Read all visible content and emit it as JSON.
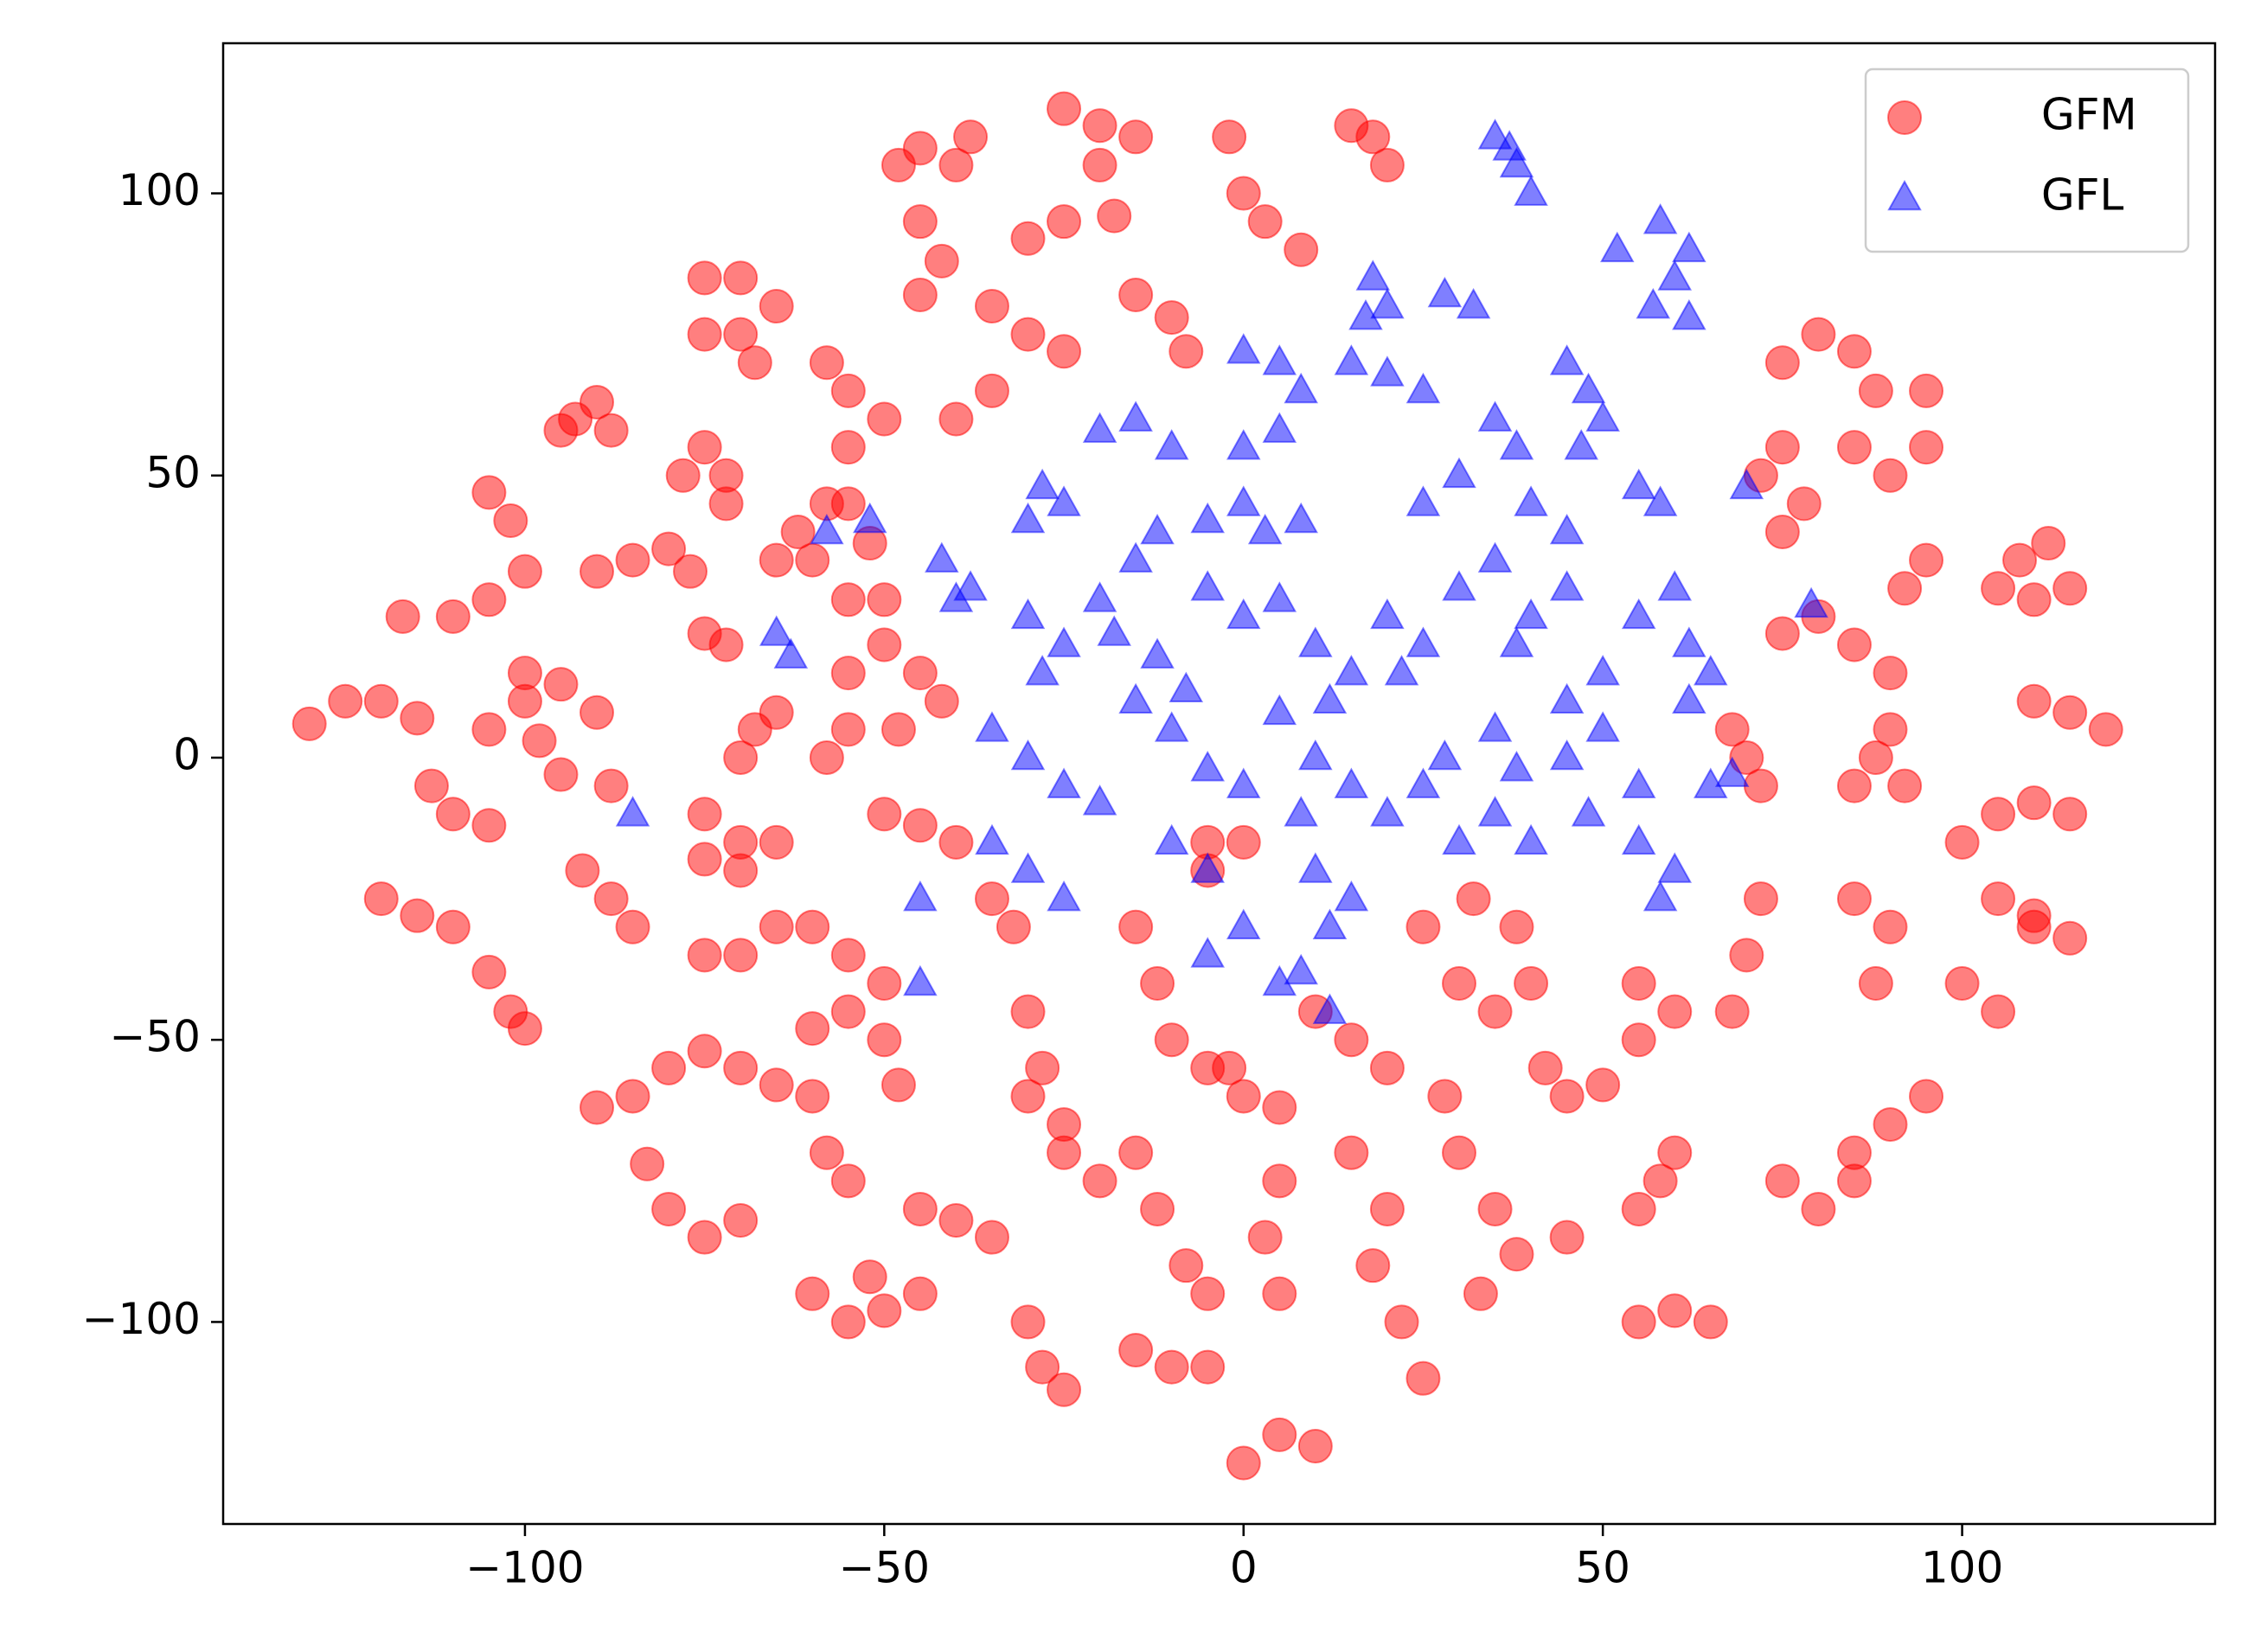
{
  "chart_data": {
    "type": "scatter",
    "xlim": [
      -142,
      135.2
    ],
    "ylim": [
      -135.8,
      126.6
    ],
    "xticks": [
      {
        "value": -100,
        "label": "−100"
      },
      {
        "value": -50,
        "label": "−50"
      },
      0,
      50,
      100
    ],
    "yticks": [
      {
        "value": -100,
        "label": "−100"
      },
      {
        "value": -50,
        "label": "−50"
      },
      0,
      50,
      100
    ],
    "legend": "upper right",
    "series": [
      {
        "name": "GFM",
        "color": "#ff0000",
        "marker": "circle",
        "x": [
          -130,
          -125,
          -120,
          -115,
          -117,
          -110,
          -105,
          -100,
          -105,
          -102,
          -93,
          -90,
          -88,
          -95,
          -80,
          -85,
          -90,
          -77,
          -75,
          -70,
          -65,
          -70,
          -75,
          -68,
          -78,
          -75,
          -72,
          -72,
          -75,
          -72,
          -100,
          -95,
          -90,
          -98,
          -95,
          -88,
          -100,
          -105,
          -113,
          -110,
          -105,
          -120,
          -115,
          -110,
          -105,
          -102,
          -100,
          -92,
          -88,
          -85,
          -90,
          -85,
          -80,
          -75,
          -83,
          -80,
          -75,
          -70,
          -75,
          -70,
          -65,
          -75,
          -70,
          -65,
          -70,
          -75,
          -70,
          -65,
          -60,
          -68,
          -65,
          -70,
          -62,
          -60,
          -65,
          -55,
          -52,
          -58,
          -58,
          -55,
          -50,
          -55,
          -48,
          -45,
          -40,
          -38,
          -45,
          -42,
          -45,
          -55,
          -50,
          -45,
          -42,
          -48,
          -55,
          -58,
          -55,
          -50,
          -50,
          -45,
          -40,
          -60,
          -55,
          -50,
          -60,
          -55,
          -50,
          -48,
          -58,
          -55,
          -60,
          -55,
          -50,
          -45,
          -52,
          -45,
          -40,
          -35,
          -35,
          -32,
          -30,
          -28,
          -25,
          -30,
          -25,
          -20,
          -15,
          -30,
          -28,
          -25,
          -25,
          -20,
          -15,
          -20,
          -30,
          -25,
          -18,
          -35,
          -30,
          -25,
          -35,
          -40,
          -15,
          -10,
          -8,
          -15,
          -12,
          -10,
          -5,
          -12,
          -8,
          -5,
          -5,
          0,
          -5,
          -15,
          -10,
          -5,
          0,
          5,
          10,
          0,
          5,
          -2,
          5,
          3,
          5,
          -2,
          0,
          3,
          8,
          15,
          18,
          20,
          10,
          15,
          20,
          15,
          20,
          18,
          22,
          25,
          25,
          30,
          35,
          40,
          38,
          32,
          28,
          30,
          35,
          33,
          38,
          42,
          45,
          50,
          45,
          55,
          60,
          55,
          55,
          60,
          65,
          60,
          58,
          55,
          68,
          70,
          72,
          72,
          70,
          68,
          75,
          80,
          85,
          75,
          80,
          85,
          88,
          95,
          75,
          72,
          75,
          78,
          80,
          75,
          85,
          90,
          85,
          90,
          95,
          90,
          88,
          92,
          85,
          85,
          90,
          88,
          95,
          92,
          95,
          90,
          85,
          100,
          105,
          110,
          115,
          105,
          110,
          100,
          105,
          108,
          112,
          115,
          110,
          105,
          110,
          115,
          120,
          110,
          115
        ],
        "y": [
          6,
          10,
          10,
          7,
          25,
          25,
          28,
          33,
          47,
          42,
          60,
          63,
          58,
          58,
          37,
          35,
          33,
          33,
          85,
          85,
          80,
          75,
          75,
          70,
          50,
          55,
          50,
          45,
          22,
          20,
          15,
          13,
          8,
          3,
          -3,
          -5,
          10,
          5,
          -5,
          -10,
          -12,
          -25,
          -28,
          -30,
          -38,
          -45,
          -48,
          -20,
          -25,
          -30,
          -62,
          -60,
          -55,
          -52,
          -72,
          -80,
          -85,
          -82,
          -35,
          -35,
          -30,
          -10,
          -15,
          -15,
          -20,
          -18,
          -55,
          -58,
          -60,
          5,
          8,
          0,
          40,
          35,
          35,
          45,
          38,
          45,
          70,
          65,
          60,
          55,
          105,
          108,
          105,
          110,
          95,
          88,
          82,
          15,
          20,
          15,
          10,
          5,
          5,
          0,
          28,
          28,
          -10,
          -12,
          -15,
          -30,
          -35,
          -40,
          -48,
          -45,
          -50,
          -58,
          -70,
          -75,
          -95,
          -100,
          -98,
          -95,
          -92,
          -80,
          -82,
          -85,
          -25,
          -30,
          -45,
          -55,
          -65,
          -60,
          -70,
          -75,
          -70,
          -100,
          -108,
          -112,
          115,
          112,
          110,
          105,
          92,
          95,
          96,
          80,
          75,
          72,
          65,
          60,
          82,
          78,
          72,
          -30,
          -40,
          -50,
          -55,
          -80,
          -90,
          -95,
          -20,
          -15,
          -15,
          -105,
          -108,
          -108,
          -125,
          -120,
          -122,
          -60,
          -62,
          -55,
          -75,
          -85,
          -95,
          110,
          100,
          95,
          90,
          112,
          110,
          105,
          -45,
          -50,
          -55,
          -70,
          -80,
          -90,
          -100,
          -110,
          -30,
          -40,
          -45,
          -40,
          -30,
          -25,
          -60,
          -70,
          -80,
          -95,
          -88,
          -55,
          -60,
          -58,
          -85,
          -40,
          -45,
          -50,
          -100,
          -98,
          -100,
          -70,
          -75,
          -80,
          5,
          0,
          -5,
          -25,
          -35,
          -45,
          -75,
          -80,
          -75,
          70,
          75,
          72,
          65,
          65,
          55,
          50,
          40,
          45,
          25,
          22,
          20,
          15,
          55,
          50,
          55,
          5,
          0,
          -5,
          -5,
          -25,
          -30,
          -40,
          35,
          30,
          -60,
          -65,
          -70,
          -15,
          -10,
          -8,
          -10,
          -25,
          -28,
          -40,
          -45,
          35,
          38,
          30,
          28,
          30,
          10,
          8,
          5,
          -30,
          -32
        ]
      },
      {
        "name": "GFL",
        "color": "#0000ff",
        "marker": "triangle",
        "x": [
          35,
          38,
          40,
          37,
          58,
          62,
          60,
          57,
          62,
          52,
          18,
          20,
          17,
          28,
          32,
          15,
          20,
          25,
          0,
          5,
          8,
          45,
          48,
          50,
          47,
          35,
          38,
          -20,
          -15,
          -10,
          -28,
          -25,
          -30,
          -58,
          -52,
          -65,
          -63,
          -42,
          -38,
          -40,
          -30,
          -25,
          -28,
          -15,
          -12,
          -5,
          0,
          3,
          8,
          -5,
          0,
          5,
          10,
          15,
          12,
          20,
          25,
          22,
          30,
          35,
          40,
          38,
          45,
          -35,
          -30,
          -25,
          -20,
          -15,
          -10,
          -5,
          0,
          5,
          10,
          8,
          15,
          20,
          25,
          28,
          -35,
          -30,
          -25,
          -10,
          -5,
          10,
          12,
          15,
          5,
          8,
          12,
          -5,
          0,
          -45,
          -45,
          -85,
          30,
          35,
          40,
          45,
          50,
          48,
          55,
          55,
          60,
          58,
          55,
          60,
          62,
          65,
          68,
          65,
          62,
          70,
          79,
          55,
          58,
          40,
          45,
          25,
          30,
          -8,
          -12,
          50,
          45,
          -20,
          -18,
          0,
          5,
          35,
          38
        ],
        "y": [
          110,
          105,
          100,
          108,
          95,
          90,
          85,
          80,
          78,
          90,
          85,
          80,
          78,
          82,
          80,
          70,
          68,
          65,
          72,
          70,
          65,
          70,
          65,
          60,
          55,
          60,
          55,
          58,
          60,
          55,
          48,
          45,
          42,
          40,
          42,
          22,
          18,
          35,
          30,
          28,
          25,
          20,
          15,
          35,
          40,
          42,
          45,
          40,
          42,
          30,
          25,
          28,
          20,
          15,
          10,
          25,
          20,
          15,
          30,
          35,
          25,
          20,
          30,
          5,
          0,
          -5,
          -8,
          10,
          5,
          -2,
          -5,
          8,
          0,
          -10,
          -5,
          -10,
          -5,
          0,
          -15,
          -20,
          -25,
          -15,
          -20,
          -20,
          -30,
          -25,
          -40,
          -38,
          -45,
          -35,
          -30,
          -25,
          -40,
          -10,
          -15,
          -10,
          -15,
          0,
          5,
          -10,
          -5,
          -15,
          -20,
          -25,
          25,
          30,
          20,
          -5,
          -3,
          15,
          10,
          48,
          27,
          48,
          45,
          45,
          40,
          45,
          50,
          12,
          18,
          15,
          10,
          28,
          22,
          55,
          58,
          5,
          -2
        ]
      }
    ]
  }
}
